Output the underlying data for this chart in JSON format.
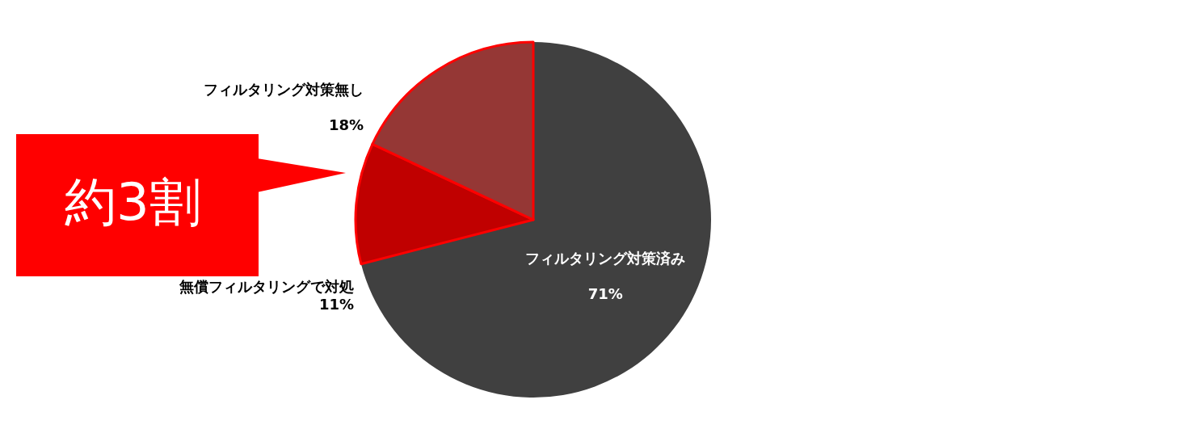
{
  "chart_data": {
    "type": "pie",
    "categories": [
      "フィルタリング対策済み",
      "無償フィルタリングで対処",
      "フィルタリング対策無し"
    ],
    "values": [
      71,
      11,
      18
    ],
    "colors": [
      "#404040",
      "#c00000",
      "#953735"
    ],
    "value_labels": [
      "71%",
      "11%",
      "18%"
    ],
    "legend": false,
    "annotations": [
      "約3割"
    ]
  }
}
